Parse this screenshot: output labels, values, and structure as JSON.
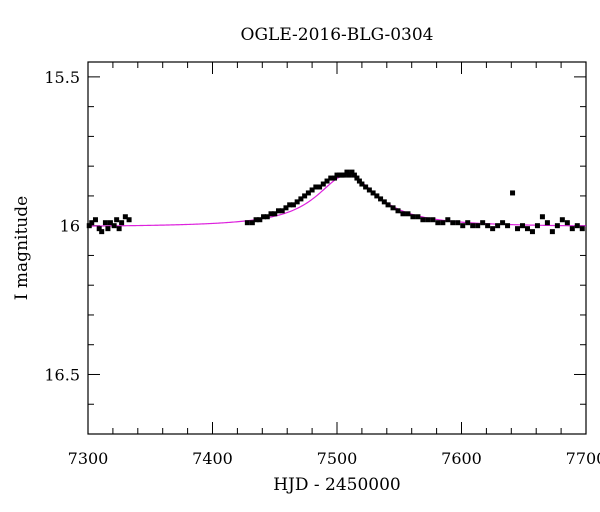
{
  "chart_data": {
    "type": "scatter",
    "title": "OGLE-2016-BLG-0304",
    "xlabel": "HJD - 2450000",
    "ylabel": "I magnitude",
    "xlim": [
      7300,
      7700
    ],
    "ylim": [
      16.7,
      15.45
    ],
    "y_inverted": true,
    "grid": false,
    "x_ticks": [
      7300,
      7400,
      7500,
      7600,
      7700
    ],
    "y_ticks": [
      15.5,
      16,
      16.5
    ],
    "colors": {
      "points": "#000000",
      "model": "#dd22dd",
      "axes": "#000000"
    },
    "model": {
      "name": "",
      "baseline": 16.005,
      "peak_time": 7508,
      "peak_mag": 15.83,
      "width_days": 30
    },
    "series": [
      {
        "name": "",
        "x": [
          7301,
          7303,
          7306,
          7309,
          7311,
          7314,
          7316,
          7318,
          7321,
          7323,
          7325,
          7327,
          7330,
          7333,
          7428,
          7432,
          7435,
          7438,
          7441,
          7444,
          7447,
          7450,
          7453,
          7456,
          7459,
          7462,
          7465,
          7468,
          7471,
          7474,
          7477,
          7480,
          7483,
          7486,
          7489,
          7492,
          7495,
          7498,
          7500,
          7502,
          7504,
          7506,
          7508,
          7510,
          7512,
          7514,
          7516,
          7518,
          7520,
          7523,
          7526,
          7529,
          7532,
          7535,
          7538,
          7541,
          7545,
          7549,
          7553,
          7557,
          7561,
          7565,
          7569,
          7573,
          7577,
          7581,
          7585,
          7589,
          7593,
          7597,
          7601,
          7605,
          7609,
          7613,
          7617,
          7621,
          7625,
          7629,
          7633,
          7637,
          7641,
          7645,
          7649,
          7653,
          7657,
          7661,
          7665,
          7669,
          7673,
          7677,
          7681,
          7685,
          7689,
          7693,
          7697
        ],
        "y": [
          16.0,
          15.99,
          15.98,
          16.01,
          16.02,
          15.99,
          16.01,
          15.99,
          16.0,
          15.98,
          16.01,
          15.99,
          15.97,
          15.98,
          15.99,
          15.99,
          15.98,
          15.98,
          15.97,
          15.97,
          15.96,
          15.96,
          15.95,
          15.95,
          15.94,
          15.93,
          15.93,
          15.92,
          15.91,
          15.9,
          15.89,
          15.88,
          15.87,
          15.87,
          15.86,
          15.85,
          15.84,
          15.84,
          15.83,
          15.83,
          15.83,
          15.83,
          15.82,
          15.83,
          15.82,
          15.83,
          15.84,
          15.85,
          15.86,
          15.87,
          15.88,
          15.89,
          15.9,
          15.91,
          15.92,
          15.93,
          15.94,
          15.95,
          15.96,
          15.96,
          15.97,
          15.97,
          15.98,
          15.98,
          15.98,
          15.99,
          15.99,
          15.98,
          15.99,
          15.99,
          16.0,
          15.99,
          16.0,
          16.0,
          15.99,
          16.0,
          16.01,
          16.0,
          15.99,
          16.0,
          15.89,
          16.01,
          16.0,
          16.01,
          16.02,
          16.0,
          15.97,
          15.99,
          16.02,
          16.0,
          15.98,
          15.99,
          16.01,
          16.0,
          16.01
        ]
      }
    ]
  }
}
